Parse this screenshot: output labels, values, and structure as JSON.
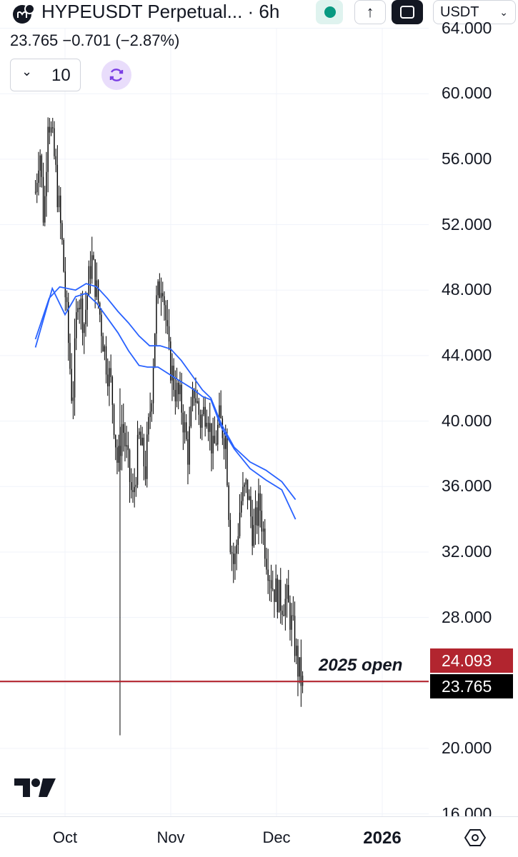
{
  "header": {
    "symbol_title": "HYPEUSDT Perpetual... · 6h",
    "currency": "USDT",
    "up_glyph": "↑",
    "icons": [
      "exchange-logo-icon",
      "market-status-icon",
      "arrow-up-icon",
      "fullscreen-icon",
      "chevron-down-icon"
    ]
  },
  "quote": {
    "last": "23.765",
    "change": "−0.701",
    "change_pct": "(−2.87%)"
  },
  "indicators": {
    "count": "10",
    "chevron": "⌄",
    "icons": [
      "chevron-down-icon",
      "sync-icon"
    ]
  },
  "annotation": "2025 open",
  "tv_logo": "TradingView",
  "colors": {
    "candles": "#000000",
    "moving_averages": "#2962ff",
    "level_line": "#b2252f",
    "last_price_badge": "#000000"
  },
  "chart_data": {
    "type": "candlestick",
    "symbol": "HYPEUSDT Perpetual",
    "interval": "6h",
    "y_axis": {
      "ticks": [
        "16.000",
        "20.000",
        "24.000",
        "28.000",
        "32.000",
        "36.000",
        "40.000",
        "44.000",
        "48.000",
        "52.000",
        "56.000",
        "60.000",
        "64.000"
      ],
      "range": [
        16,
        64
      ]
    },
    "x_axis": {
      "ticks": [
        "Oct",
        "Nov",
        "Dec",
        "2026"
      ],
      "bold_tick": "2026"
    },
    "price_path": [
      [
        -0.28,
        54
      ],
      [
        -0.24,
        57
      ],
      [
        -0.2,
        52
      ],
      [
        -0.16,
        59
      ],
      [
        -0.1,
        56
      ],
      [
        -0.03,
        51
      ],
      [
        0.02,
        46
      ],
      [
        0.07,
        41
      ],
      [
        0.12,
        48
      ],
      [
        0.18,
        46
      ],
      [
        0.25,
        50
      ],
      [
        0.32,
        47
      ],
      [
        0.38,
        44
      ],
      [
        0.44,
        42
      ],
      [
        0.5,
        37
      ],
      [
        0.54,
        40
      ],
      [
        0.58,
        38
      ],
      [
        0.64,
        35
      ],
      [
        0.7,
        39
      ],
      [
        0.76,
        37
      ],
      [
        0.82,
        42
      ],
      [
        0.86,
        47
      ],
      [
        0.92,
        49
      ],
      [
        0.98,
        44
      ],
      [
        1.04,
        42
      ],
      [
        1.1,
        41
      ],
      [
        1.16,
        38
      ],
      [
        1.22,
        42
      ],
      [
        1.28,
        40
      ],
      [
        1.34,
        41
      ],
      [
        1.4,
        38
      ],
      [
        1.46,
        40
      ],
      [
        1.52,
        39
      ],
      [
        1.56,
        33
      ],
      [
        1.6,
        31
      ],
      [
        1.66,
        35
      ],
      [
        1.72,
        36
      ],
      [
        1.78,
        33
      ],
      [
        1.84,
        35
      ],
      [
        1.9,
        32
      ],
      [
        1.96,
        30
      ],
      [
        2.04,
        29
      ],
      [
        2.1,
        29
      ],
      [
        2.16,
        27
      ],
      [
        2.2,
        25
      ],
      [
        2.25,
        23.8
      ]
    ],
    "wick_outliers": [
      [
        0.52,
        20.8
      ]
    ],
    "ranges": {
      "high": 59.3,
      "low": 20.8
    },
    "series": [
      {
        "points": [
          [
            -0.28,
            45
          ],
          [
            -0.15,
            47.5
          ],
          [
            -0.05,
            48.2
          ],
          [
            0.1,
            48
          ],
          [
            0.2,
            48.4
          ],
          [
            0.3,
            48.2
          ],
          [
            0.4,
            47.5
          ],
          [
            0.5,
            46.7
          ],
          [
            0.6,
            46
          ],
          [
            0.7,
            45.2
          ],
          [
            0.8,
            44.6
          ],
          [
            0.9,
            44.6
          ],
          [
            1.0,
            44.4
          ],
          [
            1.1,
            43.7
          ],
          [
            1.2,
            42.8
          ],
          [
            1.3,
            41.9
          ],
          [
            1.38,
            41.4
          ],
          [
            1.48,
            39.8
          ],
          [
            1.6,
            38.4
          ],
          [
            1.75,
            37.5
          ],
          [
            1.9,
            37
          ],
          [
            2.05,
            36.3
          ],
          [
            2.18,
            35.2
          ]
        ]
      },
      {
        "points": [
          [
            -0.28,
            44.5
          ],
          [
            -0.12,
            48.1
          ],
          [
            0.0,
            46.5
          ],
          [
            0.1,
            47.6
          ],
          [
            0.2,
            47.8
          ],
          [
            0.3,
            47.2
          ],
          [
            0.4,
            46.3
          ],
          [
            0.5,
            45.4
          ],
          [
            0.6,
            44.3
          ],
          [
            0.7,
            43.4
          ],
          [
            0.78,
            43.3
          ],
          [
            0.88,
            43.3
          ],
          [
            1.0,
            42.8
          ],
          [
            1.1,
            42.4
          ],
          [
            1.2,
            42
          ],
          [
            1.3,
            41.5
          ],
          [
            1.38,
            41.3
          ],
          [
            1.48,
            39.6
          ],
          [
            1.6,
            38.3
          ],
          [
            1.75,
            37.1
          ],
          [
            1.9,
            36.4
          ],
          [
            2.05,
            35.8
          ],
          [
            2.18,
            34
          ]
        ]
      }
    ],
    "levels": [
      {
        "label": "2025 open",
        "value": "24.093"
      }
    ],
    "last_price": "23.765",
    "grid": true,
    "legend": "none"
  }
}
